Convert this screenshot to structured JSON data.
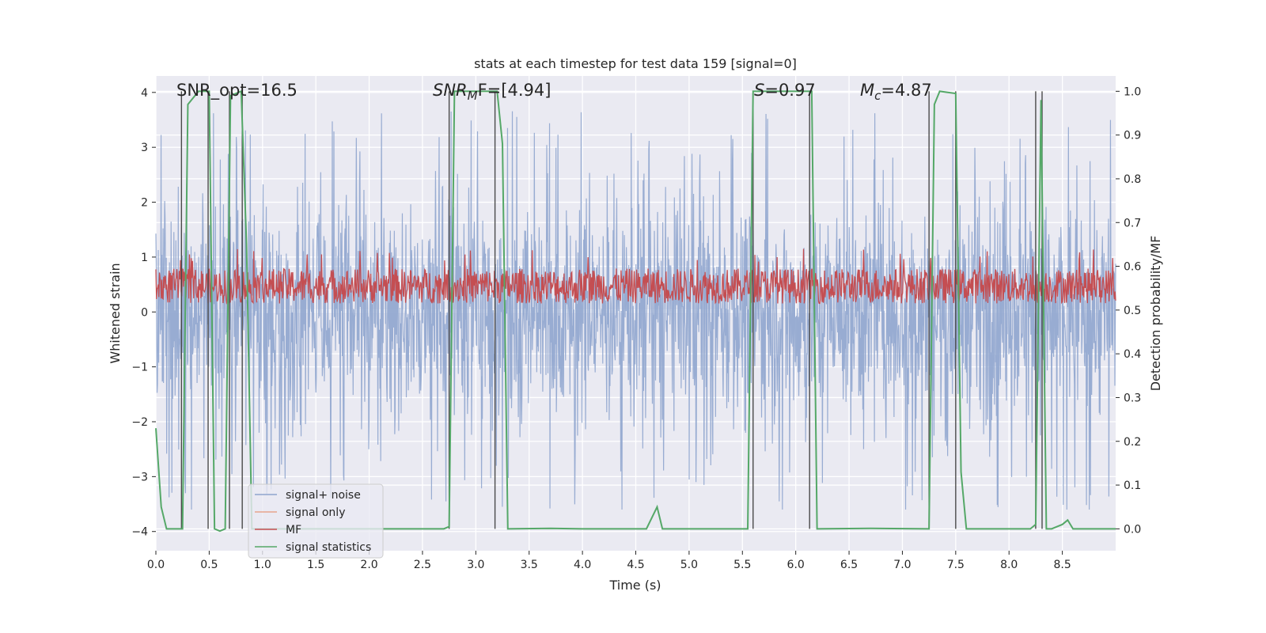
{
  "chart_data": {
    "type": "line",
    "title": "stats at each timestep for test data 159 [signal=0]",
    "xlabel": "Time (s)",
    "ylabel_left": "Whitened strain",
    "ylabel_right": "Detection probability/MF",
    "xlim": [
      0.0,
      9.0
    ],
    "ylim_left": [
      -4.35,
      4.3
    ],
    "ylim_right": [
      -0.05,
      1.035
    ],
    "x_ticks": [
      0.0,
      0.5,
      1.0,
      1.5,
      2.0,
      2.5,
      3.0,
      3.5,
      4.0,
      4.5,
      5.0,
      5.5,
      6.0,
      6.5,
      7.0,
      7.5,
      8.0,
      8.5
    ],
    "x_tick_labels": [
      "0.0",
      "0.5",
      "1.0",
      "1.5",
      "2.0",
      "2.5",
      "3.0",
      "3.5",
      "4.0",
      "4.5",
      "5.0",
      "5.5",
      "6.0",
      "6.5",
      "7.0",
      "7.5",
      "8.0",
      "8.5"
    ],
    "y_left_ticks": [
      -4,
      -3,
      -2,
      -1,
      0,
      1,
      2,
      3,
      4
    ],
    "y_left_tick_labels": [
      "−4",
      "−3",
      "−2",
      "−1",
      "0",
      "1",
      "2",
      "3",
      "4"
    ],
    "y_right_ticks": [
      0.0,
      0.1,
      0.2,
      0.3,
      0.4,
      0.5,
      0.6,
      0.7,
      0.8,
      0.9,
      1.0
    ],
    "y_right_tick_labels": [
      "0.0",
      "0.1",
      "0.2",
      "0.3",
      "0.4",
      "0.5",
      "0.6",
      "0.7",
      "0.8",
      "0.9",
      "1.0"
    ],
    "grid": true,
    "legend_position": "lower-left",
    "annotations": {
      "snr_opt": "SNR_opt=16.5",
      "snr_mf_name": "SNR",
      "snr_mf_sub": "M",
      "snr_mf_tail": "F=[4.94]",
      "s_name": "S",
      "s_value": "=0.97",
      "mc_name": "M",
      "mc_sub": "c",
      "mc_value": "=4.87"
    },
    "series": [
      {
        "name": "signal+ noise",
        "color": "#8fa5ce",
        "axis": "left",
        "description_band": [
          -2.0,
          2.3
        ],
        "peak_range": [
          -3.6,
          3.9
        ]
      },
      {
        "name": "signal only",
        "color": "#e8a58c",
        "axis": "left",
        "values": []
      },
      {
        "name": "MF",
        "color": "#c44e52",
        "axis": "right",
        "band": [
          0.5,
          0.6
        ]
      },
      {
        "name": "signal statistics",
        "color": "#55a868",
        "axis": "right",
        "x": [
          0.0,
          0.05,
          0.1,
          0.25,
          0.3,
          0.4,
          0.45,
          0.5,
          0.55,
          0.6,
          0.65,
          0.7,
          0.75,
          0.8,
          0.85,
          0.9,
          0.95,
          2.0,
          2.7,
          2.75,
          2.8,
          2.85,
          3.0,
          3.2,
          3.25,
          3.3,
          3.7,
          4.0,
          4.5,
          4.6,
          4.7,
          4.75,
          4.8,
          5.0,
          5.55,
          5.6,
          5.65,
          6.0,
          6.15,
          6.2,
          6.7,
          7.25,
          7.3,
          7.35,
          7.5,
          7.55,
          7.6,
          7.7,
          8.0,
          8.2,
          8.25,
          8.3,
          8.35,
          8.4,
          8.45,
          8.5,
          8.55,
          8.6,
          9.0
        ],
        "y": [
          0.23,
          0.05,
          0.0,
          0.0,
          0.97,
          1.0,
          1.0,
          1.0,
          0.0,
          -0.005,
          0.0,
          0.99,
          0.995,
          1.0,
          0.65,
          0.0,
          0.0,
          0.0,
          0.0,
          0.005,
          1.0,
          1.0,
          1.0,
          1.0,
          0.88,
          0.0,
          0.001,
          0.0,
          0.0,
          0.0,
          0.05,
          0.0,
          0.0,
          0.0,
          0.0,
          1.0,
          1.0,
          1.0,
          1.0,
          0.0,
          0.001,
          0.0,
          0.97,
          1.0,
          0.995,
          0.13,
          0.0,
          0.0,
          0.0,
          0.0,
          0.01,
          0.98,
          0.0,
          0.0,
          0.005,
          0.01,
          0.02,
          0.0,
          0.0
        ]
      }
    ],
    "vertical_markers_x": [
      0.24,
      0.49,
      0.69,
      0.81,
      2.75,
      3.18,
      5.6,
      6.13,
      7.25,
      7.5,
      8.25,
      8.31
    ]
  }
}
